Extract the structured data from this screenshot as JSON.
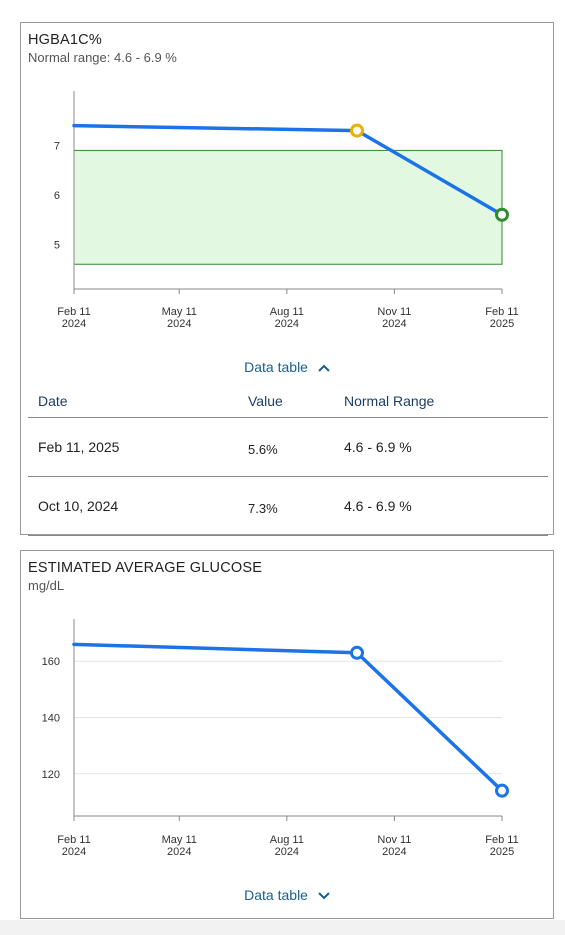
{
  "colors": {
    "line": "#1a73e8",
    "normal_band_fill": "#e3f8e1",
    "normal_band_stroke": "#2e8b2e",
    "marker_high": "#e8b100",
    "marker_normal": "#2e8b2e",
    "marker_default": "#1a73e8",
    "link": "#1a5f8f"
  },
  "cards": [
    {
      "title": "HGBA1C%",
      "subtitle": "Normal range: 4.6 - 6.9 %",
      "toggle_label": "Data table",
      "toggle_icon": "chevron-up-icon",
      "table": {
        "headers": [
          "Date",
          "Value",
          "Normal Range"
        ],
        "rows": [
          [
            "Feb 11, 2025",
            "5.6%",
            "4.6 - 6.9 %"
          ],
          [
            "Oct 10, 2024",
            "7.3%",
            "4.6 - 6.9 %"
          ]
        ]
      }
    },
    {
      "title": "ESTIMATED AVERAGE GLUCOSE",
      "subtitle": "mg/dL",
      "toggle_label": "Data table",
      "toggle_icon": "chevron-down-icon"
    }
  ],
  "chart_data": [
    {
      "type": "line",
      "title": "HGBA1C%",
      "x_ticks": [
        [
          "Feb 11",
          "2024"
        ],
        [
          "May 11",
          "2024"
        ],
        [
          "Aug 11",
          "2024"
        ],
        [
          "Nov 11",
          "2024"
        ],
        [
          "Feb 11",
          "2025"
        ]
      ],
      "x_tick_dates": [
        "2024-02-11",
        "2024-05-11",
        "2024-08-11",
        "2024-11-11",
        "2025-02-11"
      ],
      "y_ticks": [
        5,
        6,
        7
      ],
      "ylim": [
        4.1,
        8.1
      ],
      "normal_range": [
        4.6,
        6.9
      ],
      "series": [
        {
          "x": [
            "2024-02-11",
            "2024-10-10",
            "2025-02-11"
          ],
          "y": [
            7.4,
            7.3,
            5.6
          ]
        }
      ],
      "markers": [
        {
          "x": "2024-10-10",
          "y": 7.3,
          "status": "high"
        },
        {
          "x": "2025-02-11",
          "y": 5.6,
          "status": "normal"
        }
      ],
      "grid": false
    },
    {
      "type": "line",
      "title": "ESTIMATED AVERAGE GLUCOSE",
      "ylabel": "mg/dL",
      "x_ticks": [
        [
          "Feb 11",
          "2024"
        ],
        [
          "May 11",
          "2024"
        ],
        [
          "Aug 11",
          "2024"
        ],
        [
          "Nov 11",
          "2024"
        ],
        [
          "Feb 11",
          "2025"
        ]
      ],
      "x_tick_dates": [
        "2024-02-11",
        "2024-05-11",
        "2024-08-11",
        "2024-11-11",
        "2025-02-11"
      ],
      "y_ticks": [
        120,
        140,
        160
      ],
      "ylim": [
        105,
        175
      ],
      "series": [
        {
          "x": [
            "2024-02-11",
            "2024-10-10",
            "2025-02-11"
          ],
          "y": [
            166,
            163,
            114
          ]
        }
      ],
      "markers": [
        {
          "x": "2024-10-10",
          "y": 163,
          "status": "default"
        },
        {
          "x": "2025-02-11",
          "y": 114,
          "status": "default"
        }
      ],
      "grid": true
    }
  ]
}
